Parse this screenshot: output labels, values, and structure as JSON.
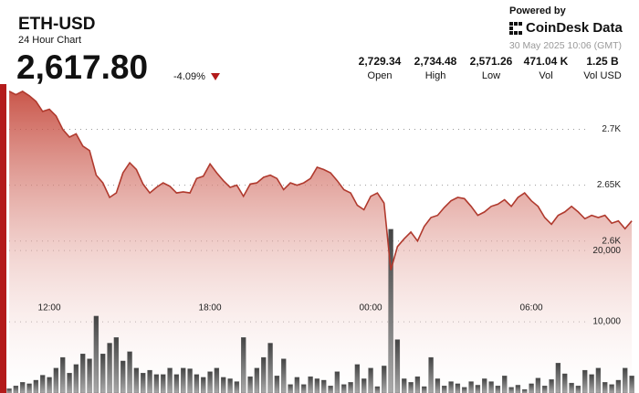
{
  "header": {
    "symbol": "ETH-USD",
    "subtitle": "24 Hour Chart",
    "price": "2,617.80",
    "change": "-4.09%",
    "stats": [
      {
        "value": "2,729.34",
        "label": "Open"
      },
      {
        "value": "2,734.48",
        "label": "High"
      },
      {
        "value": "2,571.26",
        "label": "Low"
      },
      {
        "value": "471.04 K",
        "label": "Vol"
      },
      {
        "value": "1.25 B",
        "label": "Vol USD"
      }
    ],
    "powered_by": "Powered by",
    "brand": "CoinDesk Data",
    "timestamp": "30 May 2025 10:06 (GMT)"
  },
  "chart_data": {
    "type": "line",
    "x": [
      10.5,
      10.75,
      11,
      11.25,
      11.5,
      11.75,
      12,
      12.25,
      12.5,
      12.75,
      13,
      13.25,
      13.5,
      13.75,
      14,
      14.25,
      14.5,
      14.75,
      15,
      15.25,
      15.5,
      15.75,
      16,
      16.25,
      16.5,
      16.75,
      17,
      17.25,
      17.5,
      17.75,
      18,
      18.25,
      18.5,
      18.75,
      19,
      19.25,
      19.5,
      19.75,
      20,
      20.25,
      20.5,
      20.75,
      21,
      21.25,
      21.5,
      21.75,
      22,
      22.25,
      22.5,
      22.75,
      23,
      23.25,
      23.5,
      23.75,
      24,
      24.25,
      24.5,
      24.75,
      25,
      25.25,
      25.5,
      25.75,
      26,
      26.25,
      26.5,
      26.75,
      27,
      27.25,
      27.5,
      27.75,
      28,
      28.25,
      28.5,
      28.75,
      29,
      29.25,
      29.5,
      29.75,
      30,
      30.25,
      30.5,
      30.75,
      31,
      31.25,
      31.5,
      31.75,
      32,
      32.25,
      32.5,
      32.75,
      33,
      33.25,
      33.5,
      33.75
    ],
    "xlim": [
      10.43,
      34.02
    ],
    "xticks": [
      {
        "value": 12,
        "label": "12:00"
      },
      {
        "value": 18,
        "label": "18:00"
      },
      {
        "value": 24,
        "label": "00:00"
      },
      {
        "value": 30,
        "label": "06:00"
      }
    ],
    "ylim": [
      2464,
      2738
    ],
    "yticks": [
      {
        "value": 2600,
        "label": "2.6K"
      },
      {
        "value": 2650,
        "label": "2.65K"
      },
      {
        "value": 2700,
        "label": "2.7K"
      }
    ],
    "y2lim": [
      0,
      43000
    ],
    "y2ticks": [
      {
        "value": 10000,
        "label": "10,000"
      },
      {
        "value": 20000,
        "label": "20,000"
      }
    ],
    "grid": true,
    "series": [
      {
        "color": "#b03a2e",
        "values": [
          2734,
          2731,
          2734,
          2730,
          2725,
          2716,
          2718,
          2712,
          2700,
          2693,
          2696,
          2685,
          2681,
          2659,
          2652,
          2639,
          2643,
          2661,
          2670,
          2664,
          2651,
          2643,
          2648,
          2652,
          2649,
          2643,
          2644,
          2643,
          2656,
          2658,
          2669,
          2661,
          2654,
          2648,
          2650,
          2640,
          2651,
          2652,
          2657,
          2659,
          2656,
          2646,
          2652,
          2650,
          2652,
          2656,
          2666,
          2664,
          2661,
          2654,
          2646,
          2643,
          2632,
          2628,
          2640,
          2643,
          2634,
          2574,
          2595,
          2602,
          2608,
          2600,
          2613,
          2621,
          2623,
          2630,
          2636,
          2639,
          2638,
          2631,
          2623,
          2626,
          2631,
          2633,
          2637,
          2631,
          2639,
          2643,
          2636,
          2631,
          2621,
          2615,
          2623,
          2626,
          2631,
          2626,
          2620,
          2623,
          2621,
          2623,
          2616,
          2618,
          2611,
          2618
        ]
      },
      {
        "type": "bar",
        "axis": "y2",
        "color": "#555555",
        "values": [
          600,
          1000,
          1500,
          1300,
          1800,
          2500,
          2200,
          3500,
          5000,
          2800,
          4000,
          5500,
          4800,
          10800,
          5500,
          7000,
          7800,
          4500,
          5800,
          3500,
          2800,
          3200,
          2600,
          2600,
          3500,
          2600,
          3500,
          3400,
          2600,
          2200,
          3000,
          3500,
          2200,
          2000,
          1600,
          7800,
          2300,
          3500,
          5000,
          7000,
          2400,
          4800,
          1200,
          2200,
          1200,
          2300,
          2000,
          1800,
          1000,
          3000,
          1200,
          1500,
          4000,
          2000,
          3500,
          900,
          3800,
          23000,
          7500,
          2000,
          1500,
          2300,
          900,
          5000,
          2000,
          1000,
          1600,
          1300,
          800,
          1600,
          1100,
          2000,
          1600,
          1000,
          2400,
          800,
          1100,
          500,
          1300,
          2100,
          1000,
          1900,
          4200,
          2700,
          1400,
          1000,
          3200,
          2600,
          3500,
          1500,
          1200,
          1800,
          3500,
          2400
        ]
      }
    ]
  }
}
